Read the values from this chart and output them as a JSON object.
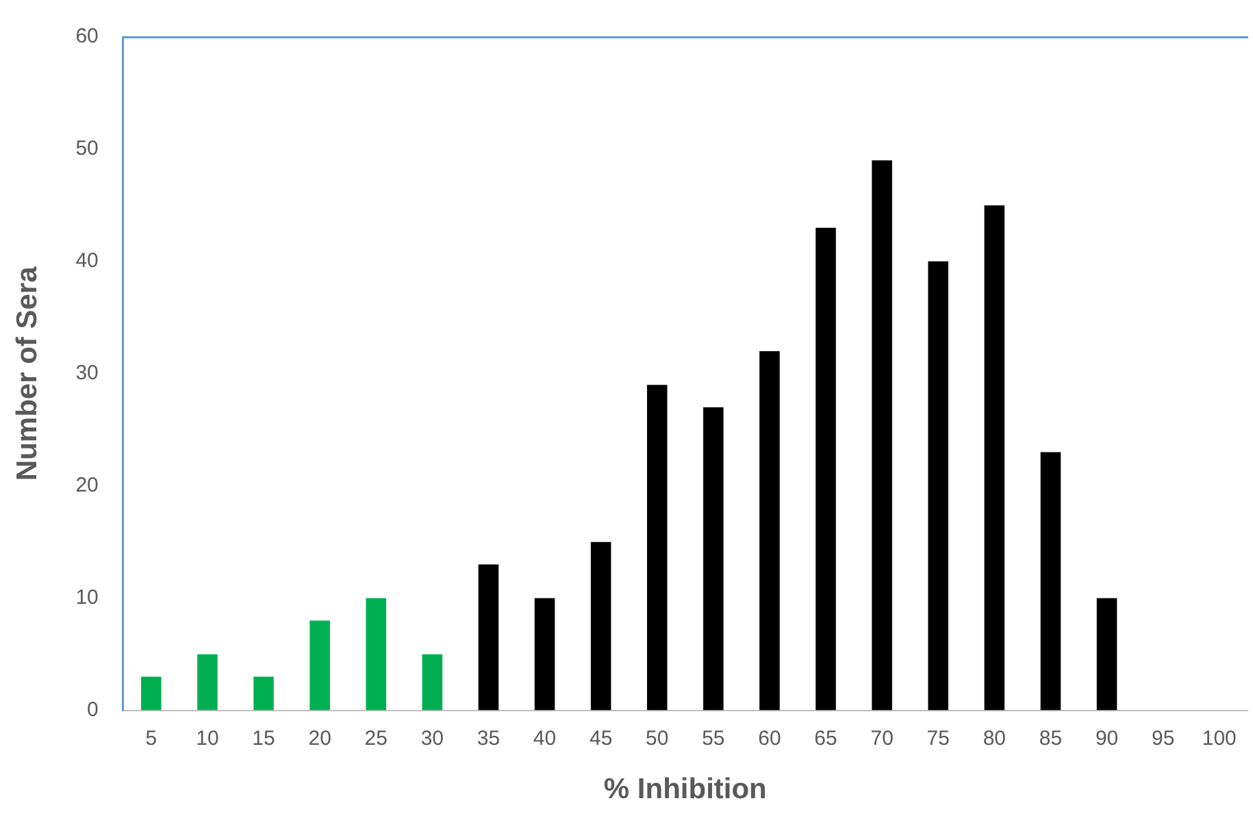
{
  "chart_data": {
    "type": "bar",
    "xlabel": "% Inhibition",
    "ylabel": "Number of Sera",
    "categories": [
      "5",
      "10",
      "15",
      "20",
      "25",
      "30",
      "35",
      "40",
      "45",
      "50",
      "55",
      "60",
      "65",
      "70",
      "75",
      "80",
      "85",
      "90",
      "95",
      "100"
    ],
    "values": [
      3,
      5,
      3,
      8,
      10,
      5,
      13,
      10,
      15,
      29,
      27,
      32,
      43,
      49,
      40,
      45,
      23,
      10,
      0,
      0
    ],
    "colors": [
      "#00b050",
      "#00b050",
      "#00b050",
      "#00b050",
      "#00b050",
      "#00b050",
      "#000000",
      "#000000",
      "#000000",
      "#000000",
      "#000000",
      "#000000",
      "#000000",
      "#000000",
      "#000000",
      "#000000",
      "#000000",
      "#000000",
      "#000000",
      "#000000"
    ],
    "ylim": [
      0,
      60
    ],
    "yticks": [
      0,
      10,
      20,
      30,
      40,
      50,
      60
    ],
    "grid": false,
    "legend": false
  }
}
